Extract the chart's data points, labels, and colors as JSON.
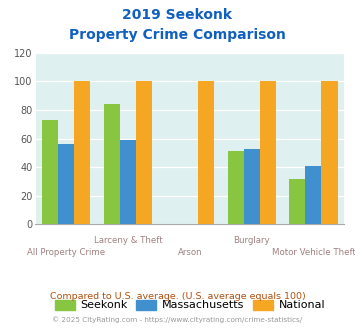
{
  "title_line1": "2019 Seekonk",
  "title_line2": "Property Crime Comparison",
  "categories": [
    "All Property Crime",
    "Larceny & Theft",
    "Arson",
    "Burglary",
    "Motor Vehicle Theft"
  ],
  "seekonk": [
    73,
    84,
    0,
    51,
    32
  ],
  "massachusetts": [
    56,
    59,
    0,
    53,
    41
  ],
  "national": [
    100,
    100,
    100,
    100,
    100
  ],
  "colors": {
    "seekonk": "#88C540",
    "massachusetts": "#4090D0",
    "national": "#F5A623"
  },
  "ylim": [
    0,
    120
  ],
  "yticks": [
    0,
    20,
    40,
    60,
    80,
    100,
    120
  ],
  "xlabel_color": "#A08080",
  "title_color": "#1060C0",
  "bg_color": "#DFF0F0",
  "note_text": "Compared to U.S. average. (U.S. average equals 100)",
  "footer_text": "© 2025 CityRating.com - https://www.cityrating.com/crime-statistics/",
  "note_color": "#B05010",
  "footer_color": "#999999",
  "legend_labels": [
    "Seekonk",
    "Massachusetts",
    "National"
  ],
  "top_xlabels": {
    "1": "Larceny & Theft",
    "3": "Burglary"
  },
  "bottom_xlabels": {
    "0": "All Property Crime",
    "2": "Arson",
    "4": "Motor Vehicle Theft"
  }
}
